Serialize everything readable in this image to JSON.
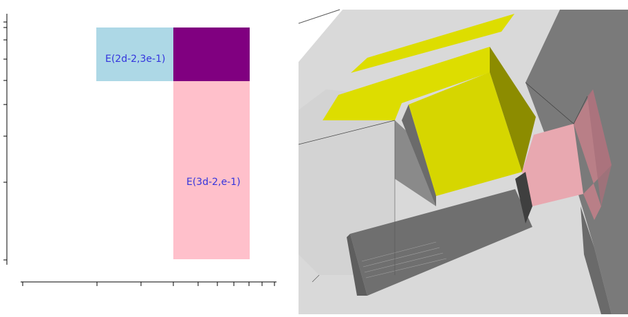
{
  "left_diagram": {
    "regions": [
      {
        "id": "E-2d-2-3e-1",
        "label": "E(2d-2,3e-1)",
        "color": "#add8e6"
      },
      {
        "id": "overlap",
        "label": "",
        "color": "#800080"
      },
      {
        "id": "E-3d-2-e-1",
        "label": "E(3d-2,e-1)",
        "color": "#ffc0cb"
      }
    ],
    "label_color": "#3333dd"
  },
  "right_render": {
    "colors": {
      "background": "#ffffff",
      "light_gray": "#d9d9d9",
      "mid_gray": "#7a7a7a",
      "dark_gray": "#5c5c5c",
      "yellow": "#dddd00",
      "yellow_dark": "#8c8c00",
      "pink": "#e8a8b0"
    }
  }
}
